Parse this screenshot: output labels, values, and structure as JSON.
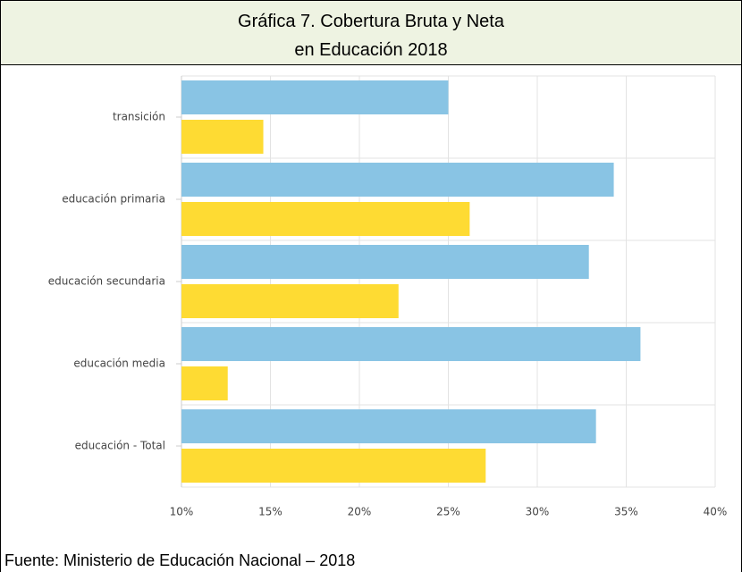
{
  "chart_data": {
    "type": "hbar",
    "title": [
      "Gráfica 7. Cobertura Bruta y Neta",
      "en Educación 2018"
    ],
    "source": "Fuente: Ministerio de Educación Nacional – 2018",
    "categories": [
      "transición",
      "educación primaria",
      "educación secundaria",
      "educación media",
      "educación - Total"
    ],
    "series": [
      {
        "color": "#89c4e4",
        "values": [
          25.0,
          34.3,
          32.9,
          35.8,
          33.3
        ]
      },
      {
        "color": "#fedb33",
        "values": [
          14.6,
          26.2,
          22.2,
          12.6,
          27.1
        ]
      }
    ],
    "xlim": [
      10,
      40
    ],
    "xticks": [
      {
        "value": 10,
        "label": "10%"
      },
      {
        "value": 15,
        "label": "15%"
      },
      {
        "value": 20,
        "label": "20%"
      },
      {
        "value": 25,
        "label": "25%"
      },
      {
        "value": 30,
        "label": "30%"
      },
      {
        "value": 35,
        "label": "35%"
      },
      {
        "value": 40,
        "label": "40%"
      }
    ],
    "grid": true
  }
}
